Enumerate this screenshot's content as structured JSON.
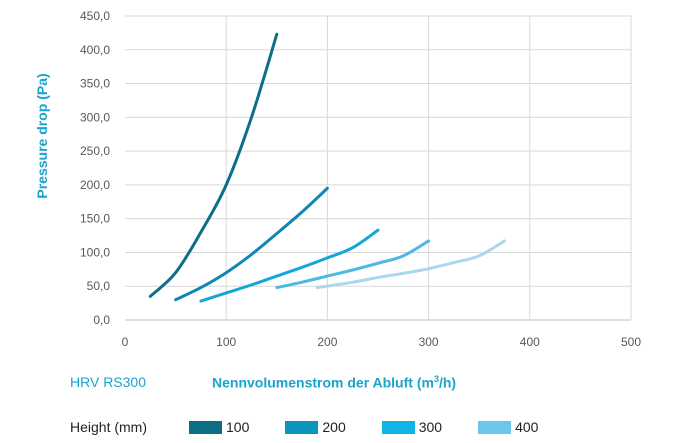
{
  "chart_data": {
    "type": "line",
    "title": "",
    "ylabel": "Pressure drop (Pa)",
    "xlabel_prefix": "Nennvolumenstrom der Abluft (m",
    "xlabel_sup": "3",
    "xlabel_suffix": "/h)",
    "product_label": "HRV RS300",
    "xlim": [
      0,
      500
    ],
    "ylim": [
      0,
      450
    ],
    "x_ticks": [
      0,
      100,
      200,
      300,
      400,
      500
    ],
    "x_tick_labels": [
      "0",
      "100",
      "200",
      "300",
      "400",
      "500"
    ],
    "y_ticks": [
      0,
      50,
      100,
      150,
      200,
      250,
      300,
      350,
      400,
      450
    ],
    "y_tick_labels": [
      "0,0",
      "50,0",
      "100,0",
      "150,0",
      "200,0",
      "250,0",
      "300,0",
      "350,0",
      "400,0",
      "450,0"
    ],
    "grid": true,
    "legend_title": "Height (mm)",
    "legend_position": "bottom",
    "series": [
      {
        "name": "100",
        "color": "#0d6e8a",
        "points": [
          [
            25,
            35
          ],
          [
            50,
            70
          ],
          [
            75,
            130
          ],
          [
            100,
            200
          ],
          [
            125,
            300
          ],
          [
            150,
            423
          ]
        ]
      },
      {
        "name": "200",
        "color": "#1087b2",
        "points": [
          [
            50,
            30
          ],
          [
            75,
            48
          ],
          [
            100,
            70
          ],
          [
            125,
            97
          ],
          [
            150,
            128
          ],
          [
            175,
            160
          ],
          [
            200,
            195
          ]
        ]
      },
      {
        "name": "300",
        "color": "#14a6d8",
        "points": [
          [
            75,
            28
          ],
          [
            100,
            40
          ],
          [
            125,
            52
          ],
          [
            150,
            65
          ],
          [
            175,
            78
          ],
          [
            200,
            92
          ],
          [
            225,
            107
          ],
          [
            250,
            133
          ]
        ]
      },
      {
        "name": "400",
        "color": "#4db8e3",
        "points": [
          [
            150,
            48
          ],
          [
            175,
            56
          ],
          [
            200,
            65
          ],
          [
            225,
            74
          ],
          [
            250,
            84
          ],
          [
            275,
            95
          ],
          [
            300,
            117
          ]
        ]
      },
      {
        "name": "",
        "color": "#a9d7ef",
        "points": [
          [
            190,
            48
          ],
          [
            225,
            56
          ],
          [
            250,
            63
          ],
          [
            275,
            69
          ],
          [
            300,
            76
          ],
          [
            325,
            85
          ],
          [
            350,
            95
          ],
          [
            375,
            117
          ]
        ]
      }
    ]
  }
}
